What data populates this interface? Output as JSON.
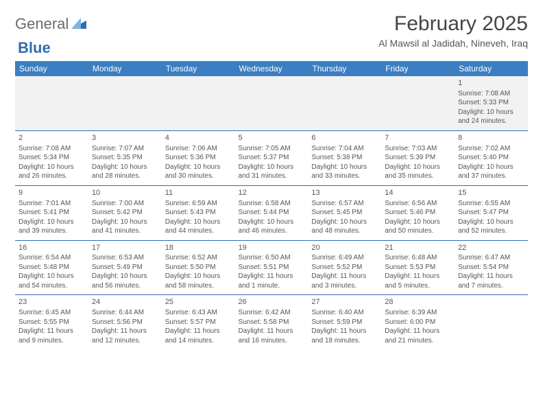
{
  "logo": {
    "word1": "General",
    "word2": "Blue"
  },
  "title": "February 2025",
  "location": "Al Mawsil al Jadidah, Nineveh, Iraq",
  "colors": {
    "header_bg": "#3b7ec2",
    "header_text": "#ffffff",
    "rule": "#2f6db2",
    "logo_blue": "#2f6db2",
    "text": "#555555"
  },
  "day_headers": [
    "Sunday",
    "Monday",
    "Tuesday",
    "Wednesday",
    "Thursday",
    "Friday",
    "Saturday"
  ],
  "weeks": [
    [
      null,
      null,
      null,
      null,
      null,
      null,
      {
        "date": "1",
        "sunrise": "Sunrise: 7:08 AM",
        "sunset": "Sunset: 5:33 PM",
        "daylight": "Daylight: 10 hours and 24 minutes."
      }
    ],
    [
      {
        "date": "2",
        "sunrise": "Sunrise: 7:08 AM",
        "sunset": "Sunset: 5:34 PM",
        "daylight": "Daylight: 10 hours and 26 minutes."
      },
      {
        "date": "3",
        "sunrise": "Sunrise: 7:07 AM",
        "sunset": "Sunset: 5:35 PM",
        "daylight": "Daylight: 10 hours and 28 minutes."
      },
      {
        "date": "4",
        "sunrise": "Sunrise: 7:06 AM",
        "sunset": "Sunset: 5:36 PM",
        "daylight": "Daylight: 10 hours and 30 minutes."
      },
      {
        "date": "5",
        "sunrise": "Sunrise: 7:05 AM",
        "sunset": "Sunset: 5:37 PM",
        "daylight": "Daylight: 10 hours and 31 minutes."
      },
      {
        "date": "6",
        "sunrise": "Sunrise: 7:04 AM",
        "sunset": "Sunset: 5:38 PM",
        "daylight": "Daylight: 10 hours and 33 minutes."
      },
      {
        "date": "7",
        "sunrise": "Sunrise: 7:03 AM",
        "sunset": "Sunset: 5:39 PM",
        "daylight": "Daylight: 10 hours and 35 minutes."
      },
      {
        "date": "8",
        "sunrise": "Sunrise: 7:02 AM",
        "sunset": "Sunset: 5:40 PM",
        "daylight": "Daylight: 10 hours and 37 minutes."
      }
    ],
    [
      {
        "date": "9",
        "sunrise": "Sunrise: 7:01 AM",
        "sunset": "Sunset: 5:41 PM",
        "daylight": "Daylight: 10 hours and 39 minutes."
      },
      {
        "date": "10",
        "sunrise": "Sunrise: 7:00 AM",
        "sunset": "Sunset: 5:42 PM",
        "daylight": "Daylight: 10 hours and 41 minutes."
      },
      {
        "date": "11",
        "sunrise": "Sunrise: 6:59 AM",
        "sunset": "Sunset: 5:43 PM",
        "daylight": "Daylight: 10 hours and 44 minutes."
      },
      {
        "date": "12",
        "sunrise": "Sunrise: 6:58 AM",
        "sunset": "Sunset: 5:44 PM",
        "daylight": "Daylight: 10 hours and 46 minutes."
      },
      {
        "date": "13",
        "sunrise": "Sunrise: 6:57 AM",
        "sunset": "Sunset: 5:45 PM",
        "daylight": "Daylight: 10 hours and 48 minutes."
      },
      {
        "date": "14",
        "sunrise": "Sunrise: 6:56 AM",
        "sunset": "Sunset: 5:46 PM",
        "daylight": "Daylight: 10 hours and 50 minutes."
      },
      {
        "date": "15",
        "sunrise": "Sunrise: 6:55 AM",
        "sunset": "Sunset: 5:47 PM",
        "daylight": "Daylight: 10 hours and 52 minutes."
      }
    ],
    [
      {
        "date": "16",
        "sunrise": "Sunrise: 6:54 AM",
        "sunset": "Sunset: 5:48 PM",
        "daylight": "Daylight: 10 hours and 54 minutes."
      },
      {
        "date": "17",
        "sunrise": "Sunrise: 6:53 AM",
        "sunset": "Sunset: 5:49 PM",
        "daylight": "Daylight: 10 hours and 56 minutes."
      },
      {
        "date": "18",
        "sunrise": "Sunrise: 6:52 AM",
        "sunset": "Sunset: 5:50 PM",
        "daylight": "Daylight: 10 hours and 58 minutes."
      },
      {
        "date": "19",
        "sunrise": "Sunrise: 6:50 AM",
        "sunset": "Sunset: 5:51 PM",
        "daylight": "Daylight: 11 hours and 1 minute."
      },
      {
        "date": "20",
        "sunrise": "Sunrise: 6:49 AM",
        "sunset": "Sunset: 5:52 PM",
        "daylight": "Daylight: 11 hours and 3 minutes."
      },
      {
        "date": "21",
        "sunrise": "Sunrise: 6:48 AM",
        "sunset": "Sunset: 5:53 PM",
        "daylight": "Daylight: 11 hours and 5 minutes."
      },
      {
        "date": "22",
        "sunrise": "Sunrise: 6:47 AM",
        "sunset": "Sunset: 5:54 PM",
        "daylight": "Daylight: 11 hours and 7 minutes."
      }
    ],
    [
      {
        "date": "23",
        "sunrise": "Sunrise: 6:45 AM",
        "sunset": "Sunset: 5:55 PM",
        "daylight": "Daylight: 11 hours and 9 minutes."
      },
      {
        "date": "24",
        "sunrise": "Sunrise: 6:44 AM",
        "sunset": "Sunset: 5:56 PM",
        "daylight": "Daylight: 11 hours and 12 minutes."
      },
      {
        "date": "25",
        "sunrise": "Sunrise: 6:43 AM",
        "sunset": "Sunset: 5:57 PM",
        "daylight": "Daylight: 11 hours and 14 minutes."
      },
      {
        "date": "26",
        "sunrise": "Sunrise: 6:42 AM",
        "sunset": "Sunset: 5:58 PM",
        "daylight": "Daylight: 11 hours and 16 minutes."
      },
      {
        "date": "27",
        "sunrise": "Sunrise: 6:40 AM",
        "sunset": "Sunset: 5:59 PM",
        "daylight": "Daylight: 11 hours and 18 minutes."
      },
      {
        "date": "28",
        "sunrise": "Sunrise: 6:39 AM",
        "sunset": "Sunset: 6:00 PM",
        "daylight": "Daylight: 11 hours and 21 minutes."
      },
      null
    ]
  ]
}
